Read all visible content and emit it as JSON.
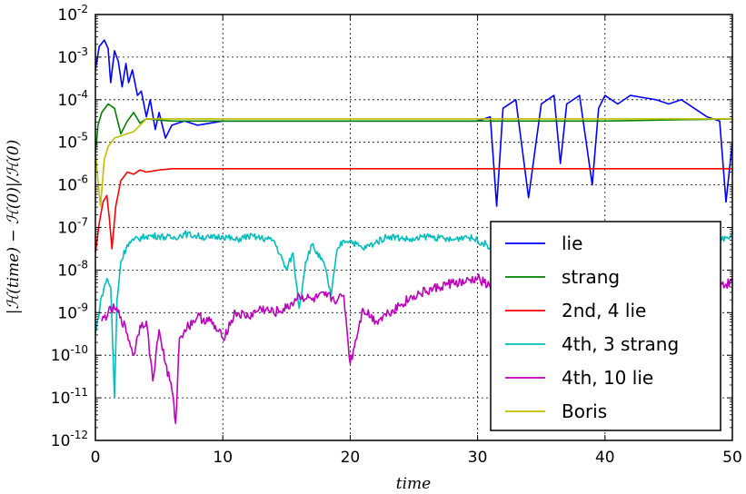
{
  "chart_data": {
    "type": "line",
    "title": "",
    "xlabel": "time",
    "ylabel": "|ℋ(time) − ℋ(0)|/ℋ(0)",
    "xlim": [
      0,
      50
    ],
    "ylim_log10": [
      -12,
      -2
    ],
    "yscale": "log",
    "grid": true,
    "legend_position": "right",
    "x_ticks": [
      "0",
      "10",
      "20",
      "30",
      "40",
      "50"
    ],
    "y_ticks": [
      {
        "base": "10",
        "exp": "-12"
      },
      {
        "base": "10",
        "exp": "-11"
      },
      {
        "base": "10",
        "exp": "-10"
      },
      {
        "base": "10",
        "exp": "-9"
      },
      {
        "base": "10",
        "exp": "-8"
      },
      {
        "base": "10",
        "exp": "-7"
      },
      {
        "base": "10",
        "exp": "-6"
      },
      {
        "base": "10",
        "exp": "-5"
      },
      {
        "base": "10",
        "exp": "-4"
      },
      {
        "base": "10",
        "exp": "-3"
      },
      {
        "base": "10",
        "exp": "-2"
      }
    ],
    "series": [
      {
        "name": "lie",
        "color": "#0000ff",
        "x": [
          0,
          0.3,
          0.7,
          1.0,
          1.2,
          1.5,
          1.8,
          2.1,
          2.4,
          2.6,
          2.9,
          3.3,
          3.6,
          4.0,
          4.3,
          4.7,
          5.0,
          5.5,
          6.0,
          7,
          8,
          10,
          14,
          20,
          26,
          30,
          31,
          31.5,
          32,
          33,
          34,
          35,
          36,
          36.5,
          37,
          38,
          39,
          39.5,
          40,
          41,
          42,
          43,
          44,
          45,
          46,
          47,
          48,
          49,
          49.5,
          50
        ],
        "log10": [
          -3.3,
          -2.75,
          -2.6,
          -2.8,
          -3.6,
          -2.85,
          -3.1,
          -3.7,
          -3.15,
          -3.6,
          -3.3,
          -3.9,
          -3.8,
          -4.4,
          -4.0,
          -4.7,
          -4.3,
          -4.9,
          -4.6,
          -4.5,
          -4.6,
          -4.5,
          -4.5,
          -4.5,
          -4.5,
          -4.5,
          -4.4,
          -6.5,
          -4.2,
          -4.0,
          -6.3,
          -4.1,
          -3.9,
          -5.5,
          -4.1,
          -3.9,
          -6.0,
          -4.2,
          -3.9,
          -4.1,
          -3.9,
          -3.95,
          -4.0,
          -4.1,
          -4.0,
          -4.2,
          -4.4,
          -4.5,
          -6.4,
          -5.0
        ]
      },
      {
        "name": "strang",
        "color": "#008000",
        "x": [
          0,
          0.2,
          0.5,
          1.0,
          1.5,
          2.0,
          2.5,
          3.0,
          3.5,
          4,
          6,
          10,
          20,
          30,
          40,
          50
        ],
        "log10": [
          -5.3,
          -4.6,
          -4.3,
          -4.1,
          -4.2,
          -4.8,
          -4.5,
          -4.3,
          -4.55,
          -4.45,
          -4.5,
          -4.5,
          -4.5,
          -4.5,
          -4.5,
          -4.45
        ]
      },
      {
        "name": "2nd, 4 lie",
        "color": "#ff0000",
        "x": [
          0,
          0.3,
          0.6,
          0.9,
          1.1,
          1.3,
          1.6,
          2.0,
          2.5,
          3.0,
          3.5,
          4.0,
          5.0,
          6.0,
          8,
          10,
          20,
          30,
          40,
          50
        ],
        "log10": [
          -7.6,
          -6.9,
          -6.4,
          -6.25,
          -6.8,
          -7.5,
          -6.5,
          -5.9,
          -5.7,
          -5.75,
          -5.65,
          -5.7,
          -5.65,
          -5.62,
          -5.62,
          -5.62,
          -5.62,
          -5.62,
          -5.62,
          -5.62
        ]
      },
      {
        "name": "4th, 3 strang",
        "color": "#00bfbf",
        "x": [
          0,
          0.5,
          0.9,
          1.2,
          1.5,
          1.7,
          2.0,
          2.5,
          3.0,
          4,
          5,
          6,
          7,
          8,
          9,
          10,
          11,
          12,
          13,
          14,
          15,
          15.5,
          16,
          16.5,
          17,
          18,
          18.5,
          19,
          19.5,
          20,
          21,
          22,
          23,
          24,
          25,
          26,
          27,
          28,
          29,
          30,
          31,
          32,
          33,
          34,
          35,
          36,
          37,
          38,
          39,
          40,
          41,
          42,
          43,
          44,
          45,
          46,
          47,
          48,
          49,
          50
        ],
        "log10": [
          -9.5,
          -8.6,
          -8.2,
          -8.4,
          -11.0,
          -8.7,
          -7.8,
          -7.4,
          -7.3,
          -7.2,
          -7.2,
          -7.25,
          -7.15,
          -7.2,
          -7.25,
          -7.2,
          -7.3,
          -7.2,
          -7.25,
          -7.3,
          -8.0,
          -7.6,
          -8.9,
          -7.8,
          -7.4,
          -7.9,
          -8.6,
          -7.5,
          -7.3,
          -7.3,
          -7.5,
          -7.35,
          -7.2,
          -7.25,
          -7.3,
          -7.2,
          -7.25,
          -7.3,
          -7.2,
          -7.3,
          -7.45,
          -7.3,
          -7.25,
          -7.3,
          -7.2,
          -7.3,
          -7.25,
          -7.2,
          -7.3,
          -7.25,
          -7.2,
          -7.3,
          -7.25,
          -7.2,
          -7.3,
          -7.2,
          -7.25,
          -7.2,
          -7.3,
          -7.15
        ]
      },
      {
        "name": "4th, 10 lie",
        "color": "#bf00bf",
        "x": [
          0.5,
          1.0,
          1.5,
          2.0,
          2.5,
          3.0,
          3.5,
          4.0,
          4.5,
          5.0,
          5.5,
          6.0,
          6.3,
          6.6,
          7,
          8,
          9,
          10,
          11,
          12,
          13,
          14,
          15,
          16,
          17,
          18,
          19,
          19.5,
          20,
          21,
          22,
          23,
          24,
          25,
          26,
          27,
          28,
          29,
          30,
          31,
          32,
          33,
          34,
          35,
          36,
          37,
          38,
          39,
          40,
          41,
          42,
          43,
          44,
          45,
          46,
          47,
          48,
          49,
          50
        ],
        "log10": [
          -9.2,
          -9.0,
          -8.9,
          -9.1,
          -9.5,
          -10.0,
          -9.3,
          -9.2,
          -10.6,
          -9.4,
          -10.2,
          -10.8,
          -11.6,
          -9.6,
          -9.4,
          -9.1,
          -9.2,
          -9.6,
          -9.0,
          -9.1,
          -8.9,
          -9.0,
          -8.9,
          -8.6,
          -8.7,
          -8.6,
          -8.7,
          -8.6,
          -10.2,
          -8.9,
          -9.2,
          -9.0,
          -8.8,
          -8.6,
          -8.5,
          -8.4,
          -8.3,
          -8.3,
          -8.2,
          -8.4,
          -8.5,
          -8.3,
          -8.4,
          -8.3,
          -8.4,
          -8.3,
          -8.3,
          -8.4,
          -8.3,
          -8.4,
          -8.3,
          -8.35,
          -8.3,
          -8.4,
          -8.35,
          -8.3,
          -8.4,
          -8.35,
          -8.3
        ]
      },
      {
        "name": "Boris",
        "color": "#bfbf00",
        "x": [
          0,
          0.2,
          0.4,
          0.7,
          1.0,
          1.5,
          2.0,
          2.5,
          3.0,
          3.5,
          4,
          6,
          10,
          20,
          30,
          40,
          50
        ],
        "log10": [
          -5.2,
          -5.9,
          -6.5,
          -5.4,
          -5.1,
          -4.9,
          -4.85,
          -4.8,
          -4.75,
          -4.6,
          -4.45,
          -4.45,
          -4.45,
          -4.45,
          -4.45,
          -4.45,
          -4.45
        ]
      }
    ]
  }
}
